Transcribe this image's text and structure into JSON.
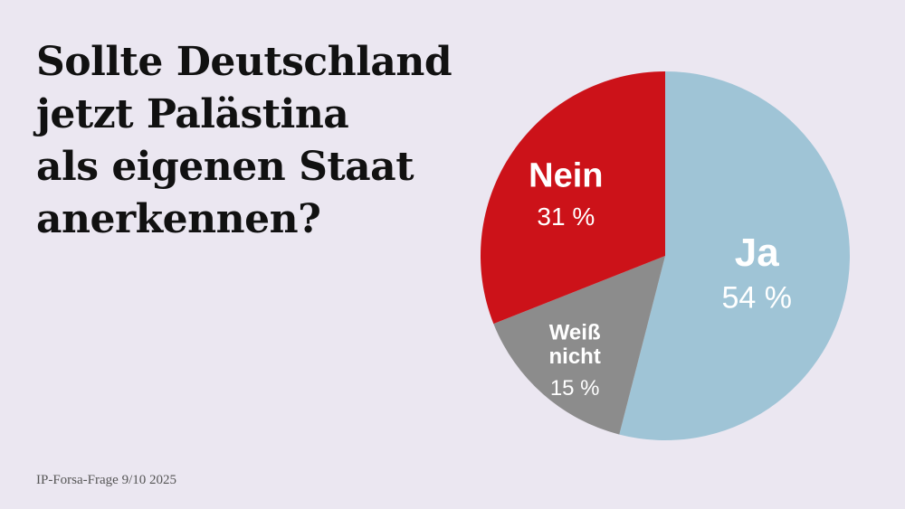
{
  "chart_data": {
    "type": "pie",
    "title": [
      "Sollte Deutschland",
      "jetzt Palästina",
      "als eigenen Staat",
      "anerkennen?"
    ],
    "slices": [
      {
        "label": [
          "Ja"
        ],
        "value": 54,
        "value_text": "54 %",
        "color": "#9fc4d6"
      },
      {
        "label": [
          "Weiß",
          "nicht"
        ],
        "value": 15,
        "value_text": "15 %",
        "color": "#8c8c8c"
      },
      {
        "label": [
          "Nein"
        ],
        "value": 31,
        "value_text": "31 %",
        "color": "#cc1219"
      }
    ]
  },
  "source": "IP-Forsa-Frage 9/10 2025"
}
